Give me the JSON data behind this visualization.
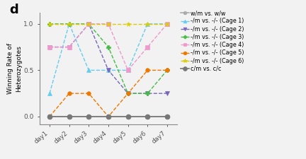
{
  "days": [
    1,
    2,
    3,
    4,
    5,
    6,
    7
  ],
  "day_labels": [
    "day1",
    "day2",
    "day3",
    "day4",
    "day5",
    "day6",
    "day7"
  ],
  "series": [
    {
      "label": "w/m vs. w/w",
      "color": "#aaaaaa",
      "marker": "o",
      "linestyle": "-",
      "values": [
        0.0,
        0.0,
        0.0,
        0.0,
        0.0,
        0.0,
        0.0
      ],
      "markersize": 4,
      "linewidth": 1.2,
      "zorder": 2
    },
    {
      "label": "-/m vs. -/- (Cage 1)",
      "color": "#66CCEE",
      "marker": "^",
      "linestyle": "--",
      "values": [
        0.25,
        1.0,
        0.5,
        0.5,
        0.5,
        1.0,
        1.0
      ],
      "markersize": 4,
      "linewidth": 1.0,
      "zorder": 3
    },
    {
      "label": "-/m vs. -/- (Cage 2)",
      "color": "#7766BB",
      "marker": "v",
      "linestyle": "--",
      "values": [
        0.75,
        0.75,
        1.0,
        0.5,
        0.25,
        0.25,
        0.25
      ],
      "markersize": 4,
      "linewidth": 1.0,
      "zorder": 3
    },
    {
      "label": "-/m vs. -/- (Cage 3)",
      "color": "#44BB44",
      "marker": "P",
      "linestyle": "--",
      "values": [
        1.0,
        1.0,
        1.0,
        0.75,
        0.25,
        0.25,
        0.5
      ],
      "markersize": 4,
      "linewidth": 1.0,
      "zorder": 3
    },
    {
      "label": "-/m vs. -/- (Cage 4)",
      "color": "#EE99CC",
      "marker": "s",
      "linestyle": "--",
      "values": [
        0.75,
        0.75,
        1.0,
        1.0,
        0.5,
        0.75,
        1.0
      ],
      "markersize": 4,
      "linewidth": 1.0,
      "zorder": 3
    },
    {
      "label": "-/m vs. -/- (Cage 5)",
      "color": "#EE7700",
      "marker": "o",
      "linestyle": "--",
      "values": [
        0.0,
        0.25,
        0.25,
        0.0,
        0.25,
        0.5,
        0.5
      ],
      "markersize": 4,
      "linewidth": 1.0,
      "zorder": 3
    },
    {
      "label": "-/m vs. -/- (Cage 6)",
      "color": "#DDCC00",
      "marker": "*",
      "linestyle": "--",
      "values": [
        1.0,
        1.0,
        1.0,
        1.0,
        1.0,
        1.0,
        1.0
      ],
      "markersize": 5,
      "linewidth": 1.0,
      "zorder": 3
    },
    {
      "label": "c/m vs. c/c",
      "color": "#777777",
      "marker": "o",
      "linestyle": "-",
      "values": [
        0.0,
        0.0,
        0.0,
        0.0,
        0.0,
        0.0,
        0.0
      ],
      "markersize": 5,
      "linewidth": 1.2,
      "zorder": 4
    }
  ],
  "ylabel": "Winning Rate of\nHeterozygotes",
  "ylim": [
    -0.08,
    1.12
  ],
  "yticks": [
    0.0,
    0.5,
    1.0
  ],
  "ytick_labels": [
    "0.0",
    "0.5",
    "1.0"
  ],
  "panel_label": "d",
  "bg_color": "#f2f2f2",
  "legend_fontsize": 5.8,
  "axis_fontsize": 6.5,
  "ylabel_fontsize": 6.5
}
